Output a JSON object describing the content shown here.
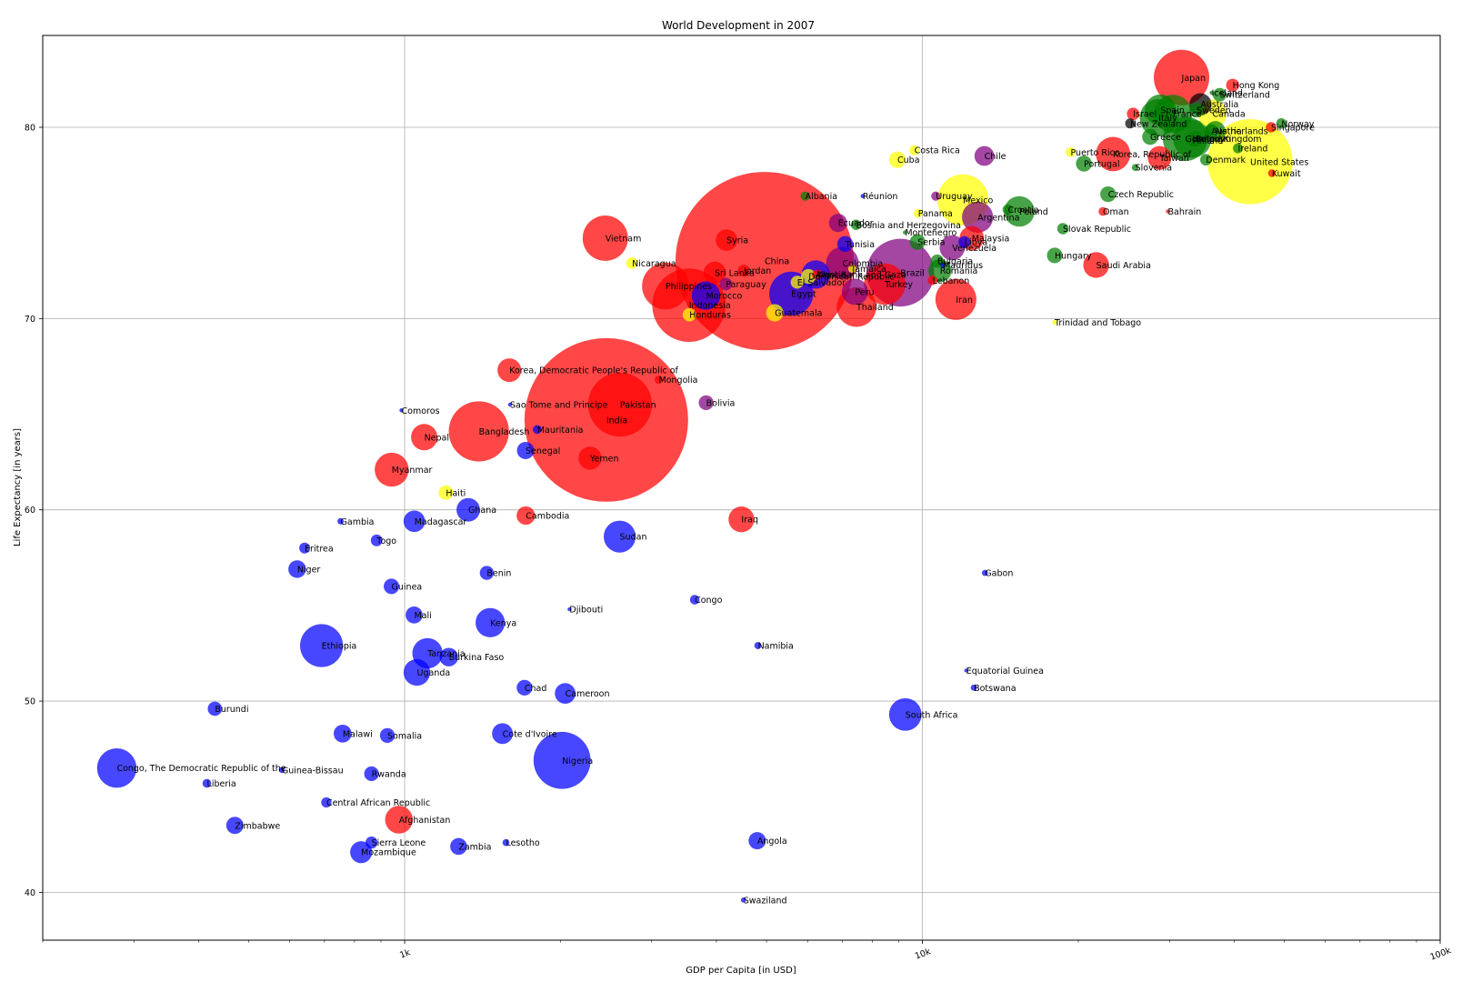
{
  "chart_data": {
    "type": "scatter",
    "title": "World Development in 2007",
    "xlabel": "GDP per Capita [in USD]",
    "ylabel": "Life Expectancy [in years]",
    "xscale": "log",
    "xlim": [
      200,
      100000
    ],
    "ylim": [
      37.5,
      84.8
    ],
    "grid": true,
    "x_ticks": [
      {
        "value": 1000,
        "label": "1k"
      },
      {
        "value": 10000,
        "label": "10k"
      },
      {
        "value": 100000,
        "label": "100k"
      }
    ],
    "y_ticks": [
      {
        "value": 40,
        "label": "40"
      },
      {
        "value": 50,
        "label": "50"
      },
      {
        "value": 60,
        "label": "60"
      },
      {
        "value": 70,
        "label": "70"
      },
      {
        "value": 80,
        "label": "80"
      }
    ],
    "continent_colors": {
      "Africa": "#0000ff",
      "Asia": "#ff0000",
      "Europe": "#008000",
      "Americas": "#ffff00",
      "Americas-South": "#800080",
      "Oceania": "#000000"
    },
    "points": [
      {
        "name": "Japan",
        "gdp": 31656,
        "life": 82.6,
        "pop": 127.5,
        "c": "Asia"
      },
      {
        "name": "Hong Kong",
        "gdp": 39725,
        "life": 82.2,
        "pop": 6.98,
        "c": "Asia"
      },
      {
        "name": "Iceland",
        "gdp": 36181,
        "life": 81.8,
        "pop": 0.3,
        "c": "Europe"
      },
      {
        "name": "Switzerland",
        "gdp": 37506,
        "life": 81.7,
        "pop": 7.55,
        "c": "Europe"
      },
      {
        "name": "Australia",
        "gdp": 34435,
        "life": 81.2,
        "pop": 20.4,
        "c": "Oceania"
      },
      {
        "name": "Sweden",
        "gdp": 33860,
        "life": 80.9,
        "pop": 9.03,
        "c": "Europe"
      },
      {
        "name": "Canada",
        "gdp": 36319,
        "life": 80.7,
        "pop": 33.4,
        "c": "Americas"
      },
      {
        "name": "Israel",
        "gdp": 25523,
        "life": 80.7,
        "pop": 6.4,
        "c": "Asia"
      },
      {
        "name": "France",
        "gdp": 30470,
        "life": 80.7,
        "pop": 61.1,
        "c": "Europe"
      },
      {
        "name": "Spain",
        "gdp": 28821,
        "life": 80.9,
        "pop": 40.4,
        "c": "Europe"
      },
      {
        "name": "Italy",
        "gdp": 28570,
        "life": 80.5,
        "pop": 58.1,
        "c": "Europe"
      },
      {
        "name": "New Zealand",
        "gdp": 25185,
        "life": 80.2,
        "pop": 4.1,
        "c": "Oceania"
      },
      {
        "name": "Norway",
        "gdp": 49357,
        "life": 80.2,
        "pop": 4.6,
        "c": "Europe"
      },
      {
        "name": "Singapore",
        "gdp": 47143,
        "life": 80.0,
        "pop": 4.55,
        "c": "Asia"
      },
      {
        "name": "Austria",
        "gdp": 36126,
        "life": 79.8,
        "pop": 8.2,
        "c": "Europe"
      },
      {
        "name": "Netherlands",
        "gdp": 36798,
        "life": 79.8,
        "pop": 16.6,
        "c": "Europe"
      },
      {
        "name": "Greece",
        "gdp": 27538,
        "life": 79.5,
        "pop": 10.7,
        "c": "Europe"
      },
      {
        "name": "Belgium",
        "gdp": 33693,
        "life": 79.4,
        "pop": 10.4,
        "c": "Europe"
      },
      {
        "name": "Germany",
        "gdp": 32170,
        "life": 79.4,
        "pop": 82.4,
        "c": "Europe"
      },
      {
        "name": "Finland",
        "gdp": 33207,
        "life": 79.3,
        "pop": 5.24,
        "c": "Europe"
      },
      {
        "name": "United Kingdom",
        "gdp": 33203,
        "life": 79.4,
        "pop": 60.8,
        "c": "Europe"
      },
      {
        "name": "Ireland",
        "gdp": 40676,
        "life": 78.9,
        "pop": 4.1,
        "c": "Europe"
      },
      {
        "name": "Costa Rica",
        "gdp": 9645,
        "life": 78.8,
        "pop": 4.1,
        "c": "Americas"
      },
      {
        "name": "Puerto Rico",
        "gdp": 19329,
        "life": 78.7,
        "pop": 3.9,
        "c": "Americas"
      },
      {
        "name": "Korea, Republic of",
        "gdp": 23348,
        "life": 78.6,
        "pop": 49.0,
        "c": "Asia"
      },
      {
        "name": "Chile",
        "gdp": 13172,
        "life": 78.5,
        "pop": 16.3,
        "c": "Americas-South"
      },
      {
        "name": "Taiwan",
        "gdp": 28718,
        "life": 78.4,
        "pop": 23.2,
        "c": "Asia"
      },
      {
        "name": "Denmark",
        "gdp": 35278,
        "life": 78.3,
        "pop": 5.47,
        "c": "Europe"
      },
      {
        "name": "United States",
        "gdp": 42952,
        "life": 78.2,
        "pop": 301.1,
        "c": "Americas"
      },
      {
        "name": "Cuba",
        "gdp": 8948,
        "life": 78.3,
        "pop": 11.4,
        "c": "Americas"
      },
      {
        "name": "Portugal",
        "gdp": 20510,
        "life": 78.1,
        "pop": 10.6,
        "c": "Europe"
      },
      {
        "name": "Slovenia",
        "gdp": 25768,
        "life": 77.9,
        "pop": 2.0,
        "c": "Europe"
      },
      {
        "name": "Kuwait",
        "gdp": 47307,
        "life": 77.6,
        "pop": 2.5,
        "c": "Asia"
      },
      {
        "name": "Czech Republic",
        "gdp": 22833,
        "life": 76.5,
        "pop": 10.2,
        "c": "Europe"
      },
      {
        "name": "Albania",
        "gdp": 5937,
        "life": 76.4,
        "pop": 3.6,
        "c": "Europe"
      },
      {
        "name": "Réunion",
        "gdp": 7670,
        "life": 76.4,
        "pop": 0.8,
        "c": "Africa"
      },
      {
        "name": "Uruguay",
        "gdp": 10611,
        "life": 76.4,
        "pop": 3.45,
        "c": "Americas-South"
      },
      {
        "name": "Mexico",
        "gdp": 11978,
        "life": 76.2,
        "pop": 108.7,
        "c": "Americas"
      },
      {
        "name": "Croatia",
        "gdp": 14619,
        "life": 75.7,
        "pop": 4.5,
        "c": "Europe"
      },
      {
        "name": "Poland",
        "gdp": 15389,
        "life": 75.6,
        "pop": 38.5,
        "c": "Europe"
      },
      {
        "name": "Oman",
        "gdp": 22316,
        "life": 75.6,
        "pop": 3.2,
        "c": "Asia"
      },
      {
        "name": "Bahrain",
        "gdp": 29796,
        "life": 75.6,
        "pop": 0.7,
        "c": "Asia"
      },
      {
        "name": "Panama",
        "gdp": 9809,
        "life": 75.5,
        "pop": 3.2,
        "c": "Americas"
      },
      {
        "name": "Argentina",
        "gdp": 12779,
        "life": 75.3,
        "pop": 40.3,
        "c": "Americas-South"
      },
      {
        "name": "Ecuador",
        "gdp": 6873,
        "life": 75.0,
        "pop": 13.8,
        "c": "Americas-South"
      },
      {
        "name": "Bosnia and Herzegovina",
        "gdp": 7446,
        "life": 74.9,
        "pop": 4.5,
        "c": "Europe"
      },
      {
        "name": "Slovak Republic",
        "gdp": 18678,
        "life": 74.7,
        "pop": 5.4,
        "c": "Europe"
      },
      {
        "name": "Montenegro",
        "gdp": 9253,
        "life": 74.5,
        "pop": 0.7,
        "c": "Europe"
      },
      {
        "name": "Vietnam",
        "gdp": 2441,
        "life": 74.2,
        "pop": 85.3,
        "c": "Asia"
      },
      {
        "name": "Syria",
        "gdp": 4185,
        "life": 74.1,
        "pop": 19.3,
        "c": "Asia"
      },
      {
        "name": "Malaysia",
        "gdp": 12452,
        "life": 74.2,
        "pop": 24.8,
        "c": "Asia"
      },
      {
        "name": "Tunisia",
        "gdp": 7093,
        "life": 73.9,
        "pop": 10.3,
        "c": "Africa"
      },
      {
        "name": "Serbia",
        "gdp": 9787,
        "life": 74.0,
        "pop": 10.2,
        "c": "Europe"
      },
      {
        "name": "Libya",
        "gdp": 12057,
        "life": 74.0,
        "pop": 6.0,
        "c": "Africa"
      },
      {
        "name": "Venezuela",
        "gdp": 11416,
        "life": 73.7,
        "pop": 26.1,
        "c": "Americas-South"
      },
      {
        "name": "Hungary",
        "gdp": 18009,
        "life": 73.3,
        "pop": 10.0,
        "c": "Europe"
      },
      {
        "name": "Nicaragua",
        "gdp": 2749,
        "life": 72.9,
        "pop": 5.7,
        "c": "Americas"
      },
      {
        "name": "China",
        "gdp": 4959,
        "life": 73.0,
        "pop": 1318.7,
        "c": "Asia"
      },
      {
        "name": "Colombia",
        "gdp": 7007,
        "life": 72.9,
        "pop": 44.2,
        "c": "Americas-South"
      },
      {
        "name": "Bulgaria",
        "gdp": 10681,
        "life": 73.0,
        "pop": 7.3,
        "c": "Europe"
      },
      {
        "name": "Mauritius",
        "gdp": 10957,
        "life": 72.8,
        "pop": 1.25,
        "c": "Africa"
      },
      {
        "name": "Saudi Arabia",
        "gdp": 21655,
        "life": 72.8,
        "pop": 27.6,
        "c": "Asia"
      },
      {
        "name": "Jamaica",
        "gdp": 7321,
        "life": 72.6,
        "pop": 2.8,
        "c": "Americas"
      },
      {
        "name": "Romania",
        "gdp": 10808,
        "life": 72.5,
        "pop": 22.3,
        "c": "Europe"
      },
      {
        "name": "Jordan",
        "gdp": 4519,
        "life": 72.5,
        "pop": 6.05,
        "c": "Asia"
      },
      {
        "name": "Sri Lanka",
        "gdp": 3970,
        "life": 72.4,
        "pop": 20.4,
        "c": "Asia"
      },
      {
        "name": "Algeria",
        "gdp": 6223,
        "life": 72.3,
        "pop": 33.3,
        "c": "Africa"
      },
      {
        "name": "Dominican Republic",
        "gdp": 6025,
        "life": 72.2,
        "pop": 9.3,
        "c": "Americas"
      },
      {
        "name": "Brazil",
        "gdp": 9066,
        "life": 72.4,
        "pop": 190.0,
        "c": "Americas-South"
      },
      {
        "name": "West Bank and Gaza",
        "gdp": 6257,
        "life": 72.3,
        "pop": 4.0,
        "c": "Asia"
      },
      {
        "name": "El Salvador",
        "gdp": 5728,
        "life": 71.9,
        "pop": 6.9,
        "c": "Americas"
      },
      {
        "name": "Turkey",
        "gdp": 8458,
        "life": 71.8,
        "pop": 71.2,
        "c": "Asia"
      },
      {
        "name": "Paraguay",
        "gdp": 4173,
        "life": 71.8,
        "pop": 6.7,
        "c": "Americas-South"
      },
      {
        "name": "Philippines",
        "gdp": 3190,
        "life": 71.7,
        "pop": 91.1,
        "c": "Asia"
      },
      {
        "name": "Lebanon",
        "gdp": 10461,
        "life": 72.0,
        "pop": 3.9,
        "c": "Asia"
      },
      {
        "name": "Peru",
        "gdp": 7409,
        "life": 71.4,
        "pop": 28.7,
        "c": "Americas-South"
      },
      {
        "name": "Egypt",
        "gdp": 5581,
        "life": 71.3,
        "pop": 80.3,
        "c": "Africa"
      },
      {
        "name": "Morocco",
        "gdp": 3820,
        "life": 71.2,
        "pop": 33.8,
        "c": "Africa"
      },
      {
        "name": "Iran",
        "gdp": 11606,
        "life": 71.0,
        "pop": 69.5,
        "c": "Asia"
      },
      {
        "name": "Indonesia",
        "gdp": 3541,
        "life": 70.7,
        "pop": 223.5,
        "c": "Asia"
      },
      {
        "name": "Thailand",
        "gdp": 7458,
        "life": 70.6,
        "pop": 65.1,
        "c": "Asia"
      },
      {
        "name": "Honduras",
        "gdp": 3548,
        "life": 70.2,
        "pop": 7.5,
        "c": "Americas"
      },
      {
        "name": "Guatemala",
        "gdp": 5186,
        "life": 70.3,
        "pop": 12.6,
        "c": "Americas"
      },
      {
        "name": "Trinidad and Tobago",
        "gdp": 18009,
        "life": 69.8,
        "pop": 1.06,
        "c": "Americas"
      },
      {
        "name": "Korea, Democratic People's Republic of",
        "gdp": 1593,
        "life": 67.3,
        "pop": 23.3,
        "c": "Asia"
      },
      {
        "name": "Mongolia",
        "gdp": 3096,
        "life": 66.8,
        "pop": 2.9,
        "c": "Asia"
      },
      {
        "name": "Bolivia",
        "gdp": 3822,
        "life": 65.6,
        "pop": 9.1,
        "c": "Americas-South"
      },
      {
        "name": "Pakistan",
        "gdp": 2606,
        "life": 65.5,
        "pop": 169.3,
        "c": "Asia"
      },
      {
        "name": "Sao Tome and Principe",
        "gdp": 1598,
        "life": 65.5,
        "pop": 0.2,
        "c": "Africa"
      },
      {
        "name": "Comoros",
        "gdp": 986,
        "life": 65.2,
        "pop": 0.7,
        "c": "Africa"
      },
      {
        "name": "India",
        "gdp": 2452,
        "life": 64.7,
        "pop": 1110.4,
        "c": "Asia"
      },
      {
        "name": "Mauritania",
        "gdp": 1803,
        "life": 64.2,
        "pop": 3.3,
        "c": "Africa"
      },
      {
        "name": "Bangladesh",
        "gdp": 1391,
        "life": 64.1,
        "pop": 150.4,
        "c": "Asia"
      },
      {
        "name": "Nepal",
        "gdp": 1091,
        "life": 63.8,
        "pop": 28.9,
        "c": "Asia"
      },
      {
        "name": "Senegal",
        "gdp": 1712,
        "life": 63.1,
        "pop": 12.3,
        "c": "Africa"
      },
      {
        "name": "Yemen",
        "gdp": 2281,
        "life": 62.7,
        "pop": 22.2,
        "c": "Asia"
      },
      {
        "name": "Myanmar",
        "gdp": 944,
        "life": 62.1,
        "pop": 47.8,
        "c": "Asia"
      },
      {
        "name": "Haiti",
        "gdp": 1201,
        "life": 60.9,
        "pop": 8.5,
        "c": "Americas"
      },
      {
        "name": "Ghana",
        "gdp": 1327,
        "life": 60.0,
        "pop": 22.9,
        "c": "Africa"
      },
      {
        "name": "Cambodia",
        "gdp": 1714,
        "life": 59.7,
        "pop": 14.1,
        "c": "Asia"
      },
      {
        "name": "Iraq",
        "gdp": 4471,
        "life": 59.5,
        "pop": 27.5,
        "c": "Asia"
      },
      {
        "name": "Gambia",
        "gdp": 752,
        "life": 59.4,
        "pop": 1.7,
        "c": "Africa"
      },
      {
        "name": "Madagascar",
        "gdp": 1044,
        "life": 59.4,
        "pop": 19.2,
        "c": "Africa"
      },
      {
        "name": "Sudan",
        "gdp": 2602,
        "life": 58.6,
        "pop": 42.3,
        "c": "Africa"
      },
      {
        "name": "Togo",
        "gdp": 883,
        "life": 58.4,
        "pop": 5.7,
        "c": "Africa"
      },
      {
        "name": "Eritrea",
        "gdp": 641,
        "life": 58.0,
        "pop": 4.9,
        "c": "Africa"
      },
      {
        "name": "Niger",
        "gdp": 620,
        "life": 56.9,
        "pop": 12.9,
        "c": "Africa"
      },
      {
        "name": "Benin",
        "gdp": 1441,
        "life": 56.7,
        "pop": 8.1,
        "c": "Africa"
      },
      {
        "name": "Gabon",
        "gdp": 13206,
        "life": 56.7,
        "pop": 1.5,
        "c": "Africa"
      },
      {
        "name": "Guinea",
        "gdp": 943,
        "life": 56.0,
        "pop": 9.9,
        "c": "Africa"
      },
      {
        "name": "Congo",
        "gdp": 3633,
        "life": 55.3,
        "pop": 3.8,
        "c": "Africa"
      },
      {
        "name": "Djibouti",
        "gdp": 2082,
        "life": 54.8,
        "pop": 0.5,
        "c": "Africa"
      },
      {
        "name": "Mali",
        "gdp": 1043,
        "life": 54.5,
        "pop": 12.0,
        "c": "Africa"
      },
      {
        "name": "Kenya",
        "gdp": 1463,
        "life": 54.1,
        "pop": 35.6,
        "c": "Africa"
      },
      {
        "name": "Ethiopia",
        "gdp": 691,
        "life": 52.9,
        "pop": 76.5,
        "c": "Africa"
      },
      {
        "name": "Namibia",
        "gdp": 4811,
        "life": 52.9,
        "pop": 2.1,
        "c": "Africa"
      },
      {
        "name": "Tanzania",
        "gdp": 1107,
        "life": 52.5,
        "pop": 38.1,
        "c": "Africa"
      },
      {
        "name": "Burkina Faso",
        "gdp": 1217,
        "life": 52.3,
        "pop": 14.3,
        "c": "Africa"
      },
      {
        "name": "Equatorial Guinea",
        "gdp": 12154,
        "life": 51.6,
        "pop": 0.55,
        "c": "Africa"
      },
      {
        "name": "Uganda",
        "gdp": 1056,
        "life": 51.5,
        "pop": 29.2,
        "c": "Africa"
      },
      {
        "name": "Chad",
        "gdp": 1704,
        "life": 50.7,
        "pop": 10.2,
        "c": "Africa"
      },
      {
        "name": "Botswana",
        "gdp": 12570,
        "life": 50.7,
        "pop": 1.6,
        "c": "Africa"
      },
      {
        "name": "Cameroon",
        "gdp": 2042,
        "life": 50.4,
        "pop": 17.7,
        "c": "Africa"
      },
      {
        "name": "Burundi",
        "gdp": 430,
        "life": 49.6,
        "pop": 8.4,
        "c": "Africa"
      },
      {
        "name": "South Africa",
        "gdp": 9269,
        "life": 49.3,
        "pop": 44.0,
        "c": "Africa"
      },
      {
        "name": "Malawi",
        "gdp": 759,
        "life": 48.3,
        "pop": 13.3,
        "c": "Africa"
      },
      {
        "name": "Somalia",
        "gdp": 926,
        "life": 48.2,
        "pop": 9.1,
        "c": "Africa"
      },
      {
        "name": "Cote d'Ivoire",
        "gdp": 1545,
        "life": 48.3,
        "pop": 18.0,
        "c": "Africa"
      },
      {
        "name": "Nigeria",
        "gdp": 2014,
        "life": 46.9,
        "pop": 135.0,
        "c": "Africa"
      },
      {
        "name": "Congo, The Democratic Republic of the",
        "gdp": 278,
        "life": 46.5,
        "pop": 64.6,
        "c": "Africa"
      },
      {
        "name": "Guinea-Bissau",
        "gdp": 579,
        "life": 46.4,
        "pop": 1.5,
        "c": "Africa"
      },
      {
        "name": "Rwanda",
        "gdp": 863,
        "life": 46.2,
        "pop": 8.9,
        "c": "Africa"
      },
      {
        "name": "Liberia",
        "gdp": 415,
        "life": 45.7,
        "pop": 3.2,
        "c": "Africa"
      },
      {
        "name": "Central African Republic",
        "gdp": 706,
        "life": 44.7,
        "pop": 4.4,
        "c": "Africa"
      },
      {
        "name": "Afghanistan",
        "gdp": 975,
        "life": 43.8,
        "pop": 31.9,
        "c": "Asia"
      },
      {
        "name": "Zimbabwe",
        "gdp": 470,
        "life": 43.5,
        "pop": 12.3,
        "c": "Africa"
      },
      {
        "name": "Sierra Leone",
        "gdp": 863,
        "life": 42.6,
        "pop": 6.1,
        "c": "Africa"
      },
      {
        "name": "Lesotho",
        "gdp": 1569,
        "life": 42.6,
        "pop": 2.0,
        "c": "Africa"
      },
      {
        "name": "Zambia",
        "gdp": 1271,
        "life": 42.4,
        "pop": 11.7,
        "c": "Africa"
      },
      {
        "name": "Angola",
        "gdp": 4797,
        "life": 42.7,
        "pop": 12.4,
        "c": "Africa"
      },
      {
        "name": "Mozambique",
        "gdp": 824,
        "life": 42.1,
        "pop": 19.95,
        "c": "Africa"
      },
      {
        "name": "Swaziland",
        "gdp": 4513,
        "life": 39.6,
        "pop": 1.1,
        "c": "Africa"
      }
    ]
  }
}
